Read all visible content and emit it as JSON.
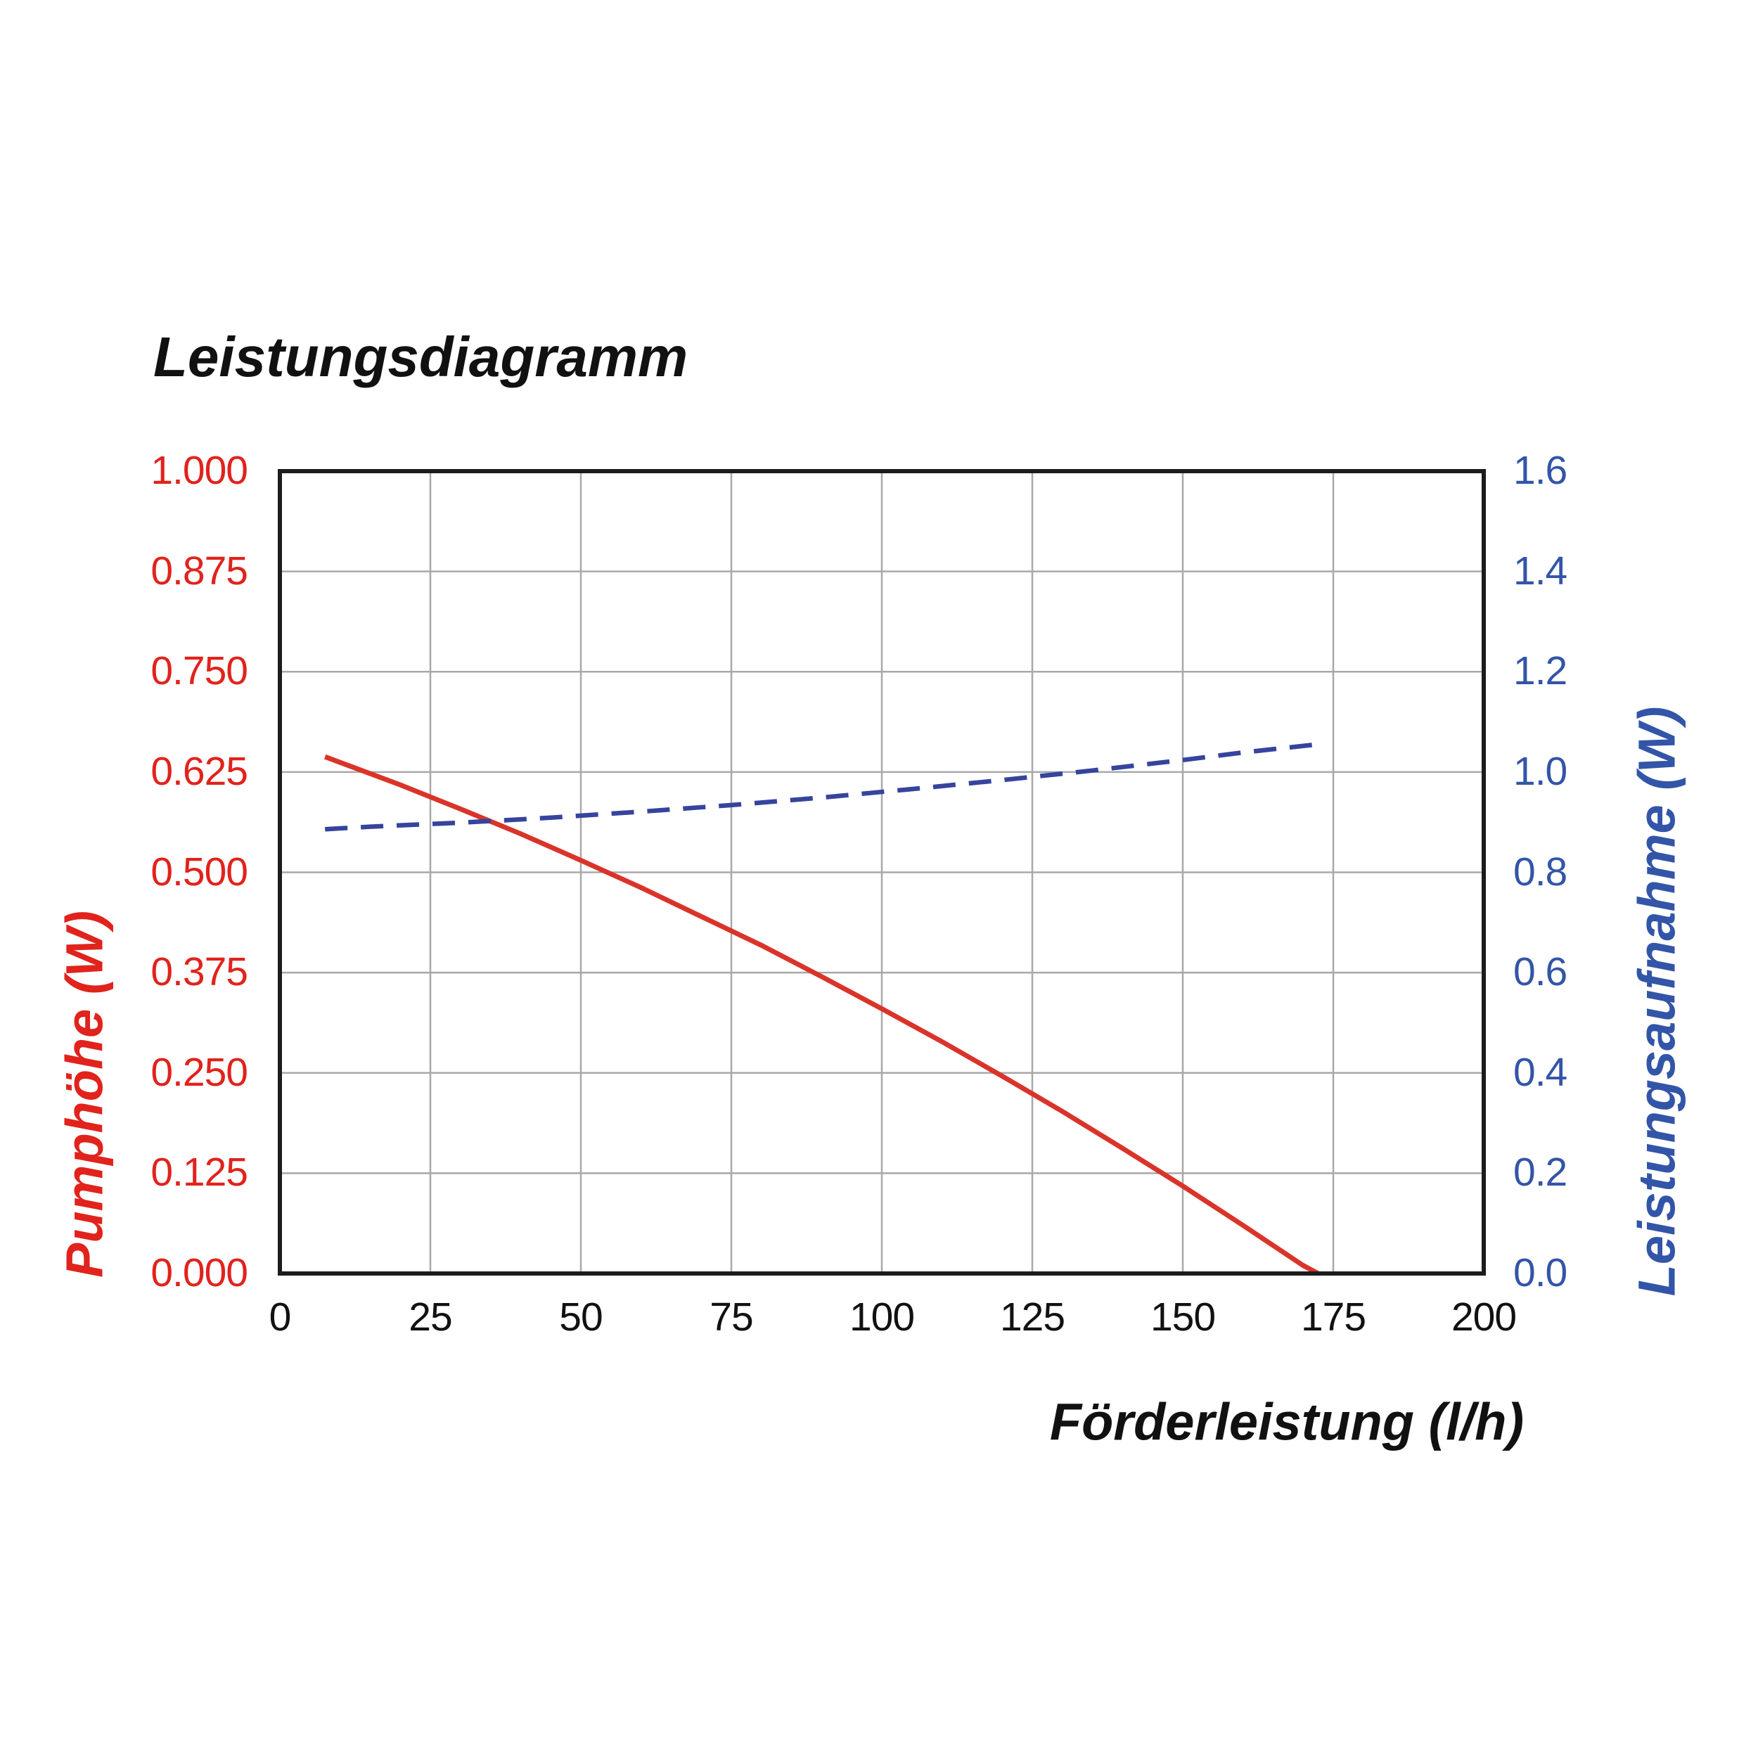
{
  "page": {
    "background": "#ffffff",
    "text_color": "#111111"
  },
  "chart_data": {
    "type": "line",
    "title": "Leistungsdiagramm",
    "grid": true,
    "legend": "none",
    "colors": {
      "grid": "#a8a8a8",
      "border": "#1c1c1c",
      "red_text": "#e0231c",
      "red_line": "#da342a",
      "blue_text": "#3355a8",
      "blue_line": "#36449e",
      "black_text": "#111111"
    },
    "x_axis": {
      "label": "Förderleistung (l/h)",
      "min": 0,
      "max": 200,
      "tick_step": 25,
      "ticks": [
        "0",
        "25",
        "50",
        "75",
        "100",
        "125",
        "150",
        "175",
        "200"
      ]
    },
    "y_left": {
      "label": "Pumphöhe (W)",
      "min": 0,
      "max": 1.0,
      "tick_step": 0.125,
      "ticks": [
        "1.000",
        "0.875",
        "0.750",
        "0.625",
        "0.500",
        "0.375",
        "0.250",
        "0.125",
        "0.000"
      ]
    },
    "y_right": {
      "label": "Leistungsaufnahme (W)",
      "min": 0,
      "max": 1.6,
      "tick_step": 0.2,
      "ticks": [
        "1.6",
        "1.4",
        "1.2",
        "1.0",
        "0.8",
        "0.6",
        "0.4",
        "0.2",
        "0.0"
      ]
    },
    "series": [
      {
        "name": "Pumphöhe (W)",
        "axis": "left",
        "style": "solid",
        "color": "#da342a",
        "points": [
          [
            7.5,
            0.644
          ],
          [
            10,
            0.637
          ],
          [
            20,
            0.609
          ],
          [
            30,
            0.579
          ],
          [
            40,
            0.548
          ],
          [
            50,
            0.515
          ],
          [
            60,
            0.481
          ],
          [
            70,
            0.445
          ],
          [
            80,
            0.409
          ],
          [
            90,
            0.37
          ],
          [
            100,
            0.33
          ],
          [
            110,
            0.289
          ],
          [
            120,
            0.246
          ],
          [
            130,
            0.202
          ],
          [
            140,
            0.156
          ],
          [
            150,
            0.109
          ],
          [
            160,
            0.06
          ],
          [
            170,
            0.01
          ],
          [
            172.5,
            0.0
          ]
        ]
      },
      {
        "name": "Leistungsaufnahme (W)",
        "axis": "right",
        "style": "dashed",
        "color": "#36449e",
        "points": [
          [
            7.5,
            0.886
          ],
          [
            15,
            0.891
          ],
          [
            30,
            0.899
          ],
          [
            45,
            0.909
          ],
          [
            60,
            0.921
          ],
          [
            75,
            0.934
          ],
          [
            90,
            0.949
          ],
          [
            105,
            0.966
          ],
          [
            120,
            0.984
          ],
          [
            135,
            1.003
          ],
          [
            150,
            1.024
          ],
          [
            160,
            1.039
          ],
          [
            173,
            1.056
          ]
        ]
      }
    ]
  }
}
